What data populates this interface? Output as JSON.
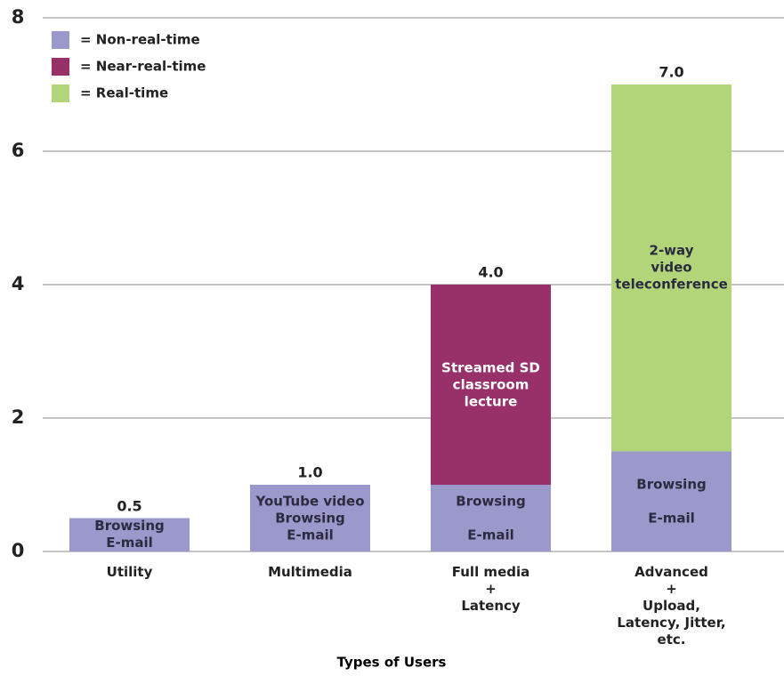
{
  "chart_data": {
    "type": "bar",
    "stacked": true,
    "x_label": "Types of Users",
    "categories": [
      "Utility",
      "Multimedia",
      "Full media\n+\nLatency",
      "Advanced\n+\nUpload, Latency, Jitter, etc."
    ],
    "series": [
      {
        "name": "= Non-real-time",
        "color": "#9b98cc",
        "text_color": "#2b2b3f",
        "values": [
          0.5,
          1.0,
          1.0,
          1.5
        ],
        "segment_labels": [
          "Browsing\nE-mail",
          "YouTube video\nBrowsing\nE-mail",
          "Browsing\n\nE-mail",
          "Browsing\n\nE-mail"
        ]
      },
      {
        "name": "= Near-real-time",
        "color": "#98316a",
        "text_color": "#ffffff",
        "values": [
          null,
          null,
          3.0,
          null
        ],
        "segment_labels": [
          null,
          null,
          "Streamed SD\nclassroom\nlecture",
          null
        ]
      },
      {
        "name": "= Real-time",
        "color": "#b3d57a",
        "text_color": "#2b2b3f",
        "values": [
          null,
          null,
          null,
          5.5
        ],
        "segment_labels": [
          null,
          null,
          null,
          "2-way\nvideo\nteleconference"
        ]
      }
    ],
    "totals": [
      0.5,
      1.0,
      4.0,
      7.0
    ],
    "total_labels": [
      "0.5",
      "1.0",
      "4.0",
      "7.0"
    ],
    "ylim": [
      0,
      8
    ],
    "yticks": [
      0,
      2,
      4,
      6,
      8
    ],
    "grid": true,
    "legend": "upper left"
  }
}
